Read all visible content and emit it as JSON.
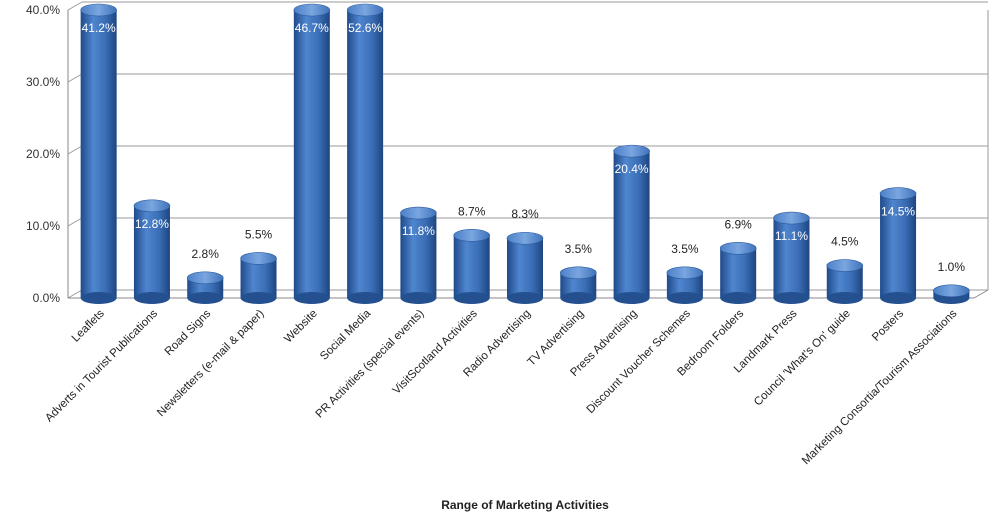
{
  "chart_data": {
    "type": "bar",
    "title": "",
    "xlabel": "Range of Marketing Activities",
    "ylabel": "",
    "ylim": [
      0,
      40
    ],
    "yticks": [
      0,
      10,
      20,
      30,
      40
    ],
    "ytick_labels": [
      "0.0%",
      "10.0%",
      "20.0%",
      "30.0%",
      "40.0%"
    ],
    "grid": true,
    "legend": "none",
    "categories": [
      "Leaflets",
      "Adverts in Tourist Publications",
      "Road Signs",
      "Newsletters (e-mail & paper)",
      "Website",
      "Social Media",
      "PR Activities (special events)",
      "VisitScotland Activities",
      "Radio Advertising",
      "TV Advertising",
      "Press Advertising",
      "Discount Voucher Schemes",
      "Bedroom Folders",
      "Landmark Press",
      "Council 'What's On' guide",
      "Posters",
      "Marketing Consortia/Tourism Associations"
    ],
    "values": [
      41.2,
      12.8,
      2.8,
      5.5,
      46.7,
      52.6,
      11.8,
      8.7,
      8.3,
      3.5,
      20.4,
      3.5,
      6.9,
      11.1,
      4.5,
      14.5,
      1.0
    ],
    "value_labels": [
      "41.2%",
      "12.8%",
      "2.8%",
      "5.5%",
      "46.7%",
      "52.6%",
      "11.8%",
      "8.7%",
      "8.3%",
      "3.5%",
      "20.4%",
      "3.5%",
      "6.9%",
      "11.1%",
      "4.5%",
      "14.5%",
      "1.0%"
    ],
    "bar_color": "#3a6db5"
  }
}
